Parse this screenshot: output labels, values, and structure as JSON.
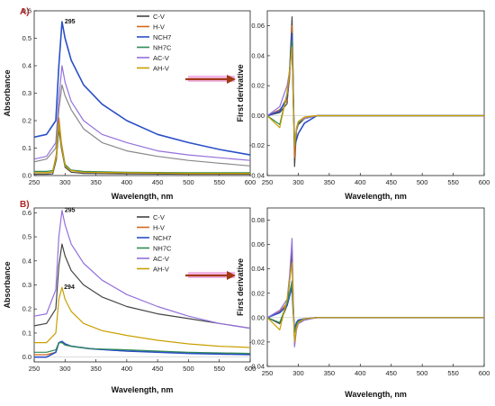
{
  "chart_data": [
    {
      "id": "A-absorbance",
      "type": "line",
      "panel_label": "A)",
      "xlabel": "Wavelength, nm",
      "ylabel": "Absorbance",
      "xlim": [
        250,
        600
      ],
      "ylim": [
        0,
        0.6
      ],
      "xticks": [
        250,
        300,
        350,
        400,
        450,
        500,
        550,
        600
      ],
      "yticks": [
        0.0,
        0.1,
        0.2,
        0.3,
        0.4,
        0.5,
        0.6
      ],
      "ytick_labels": [
        "0.0",
        "0.1",
        "0.2",
        "0.3",
        "0.4",
        "0.5",
        "0.6"
      ],
      "legend_position": "top-right",
      "annotations": [
        {
          "text": "295",
          "x": 295,
          "y": 0.56
        }
      ],
      "series": [
        {
          "name": "C-V",
          "color": "#444444",
          "x": [
            250,
            270,
            280,
            286,
            290,
            294,
            300,
            310,
            330,
            400,
            500,
            600
          ],
          "y": [
            0.005,
            0.005,
            0.006,
            0.06,
            0.17,
            0.1,
            0.03,
            0.012,
            0.008,
            0.006,
            0.005,
            0.005
          ]
        },
        {
          "name": "H-V",
          "color": "#d2691e",
          "x": [
            250,
            270,
            280,
            286,
            290,
            294,
            300,
            310,
            330,
            400,
            500,
            600
          ],
          "y": [
            0.01,
            0.01,
            0.012,
            0.08,
            0.21,
            0.12,
            0.04,
            0.018,
            0.012,
            0.01,
            0.008,
            0.008
          ]
        },
        {
          "name": "NCH7",
          "color": "#2a4fc7",
          "x": [
            250,
            270,
            285,
            290,
            295,
            300,
            310,
            330,
            360,
            400,
            450,
            500,
            550,
            600
          ],
          "y": [
            0.14,
            0.15,
            0.2,
            0.4,
            0.56,
            0.5,
            0.42,
            0.33,
            0.26,
            0.2,
            0.15,
            0.12,
            0.095,
            0.075
          ]
        },
        {
          "name": "NH7C",
          "color": "#2e8b57",
          "x": [
            250,
            270,
            280,
            286,
            290,
            294,
            300,
            310,
            330,
            400,
            500,
            600
          ],
          "y": [
            0.015,
            0.015,
            0.018,
            0.07,
            0.19,
            0.11,
            0.04,
            0.02,
            0.015,
            0.012,
            0.01,
            0.01
          ]
        },
        {
          "name": "AC-V",
          "color": "#9370db",
          "x": [
            250,
            270,
            285,
            290,
            295,
            300,
            310,
            330,
            360,
            400,
            450,
            500,
            550,
            600
          ],
          "y": [
            0.06,
            0.07,
            0.12,
            0.28,
            0.4,
            0.34,
            0.27,
            0.2,
            0.15,
            0.12,
            0.09,
            0.075,
            0.065,
            0.055
          ]
        },
        {
          "name": "AH-V",
          "color": "#c8a000",
          "x": [
            250,
            270,
            280,
            286,
            290,
            294,
            300,
            310,
            330,
            400,
            500,
            600
          ],
          "y": [
            0.01,
            0.01,
            0.013,
            0.07,
            0.19,
            0.11,
            0.035,
            0.018,
            0.012,
            0.01,
            0.008,
            0.008
          ]
        },
        {
          "name": "",
          "color": "#888888",
          "x": [
            250,
            270,
            285,
            290,
            295,
            300,
            310,
            330,
            360,
            400,
            450,
            500,
            550,
            600
          ],
          "y": [
            0.05,
            0.06,
            0.1,
            0.24,
            0.33,
            0.29,
            0.24,
            0.17,
            0.12,
            0.09,
            0.07,
            0.055,
            0.045,
            0.035
          ]
        }
      ]
    },
    {
      "id": "A-derivative",
      "type": "line",
      "xlabel": "Wavelength, nm",
      "ylabel": "First derivative",
      "xlim": [
        250,
        600
      ],
      "ylim": [
        -0.04,
        0.07
      ],
      "xticks": [
        250,
        300,
        350,
        400,
        450,
        500,
        550,
        600
      ],
      "yticks": [
        -0.04,
        -0.02,
        0.0,
        0.02,
        0.04,
        0.06
      ],
      "ytick_labels": [
        "-0.04",
        "-0.02",
        "0.00",
        "0.02",
        "0.04",
        "0.06"
      ],
      "series": [
        {
          "name": "C-V",
          "color": "#444444",
          "x": [
            250,
            270,
            282,
            286,
            290,
            292,
            294,
            297,
            300,
            310,
            330,
            600
          ],
          "y": [
            0.0,
            0.002,
            0.008,
            0.03,
            0.066,
            0.02,
            -0.034,
            -0.01,
            -0.006,
            -0.002,
            0.0,
            0.0
          ]
        },
        {
          "name": "H-V",
          "color": "#d2691e",
          "x": [
            250,
            270,
            282,
            286,
            290,
            292,
            294,
            297,
            300,
            310,
            330,
            600
          ],
          "y": [
            0.0,
            0.004,
            0.01,
            0.025,
            0.06,
            0.015,
            -0.028,
            -0.01,
            -0.004,
            -0.001,
            0.0,
            0.0
          ]
        },
        {
          "name": "NCH7",
          "color": "#2a4fc7",
          "x": [
            250,
            270,
            282,
            286,
            290,
            292,
            294,
            297,
            300,
            310,
            330,
            600
          ],
          "y": [
            0.0,
            0.003,
            0.012,
            0.03,
            0.055,
            0.01,
            -0.02,
            -0.016,
            -0.012,
            -0.005,
            0.0,
            0.0
          ]
        },
        {
          "name": "NH7C",
          "color": "#2e8b57",
          "x": [
            250,
            270,
            282,
            286,
            290,
            292,
            294,
            297,
            300,
            310,
            330,
            600
          ],
          "y": [
            0.0,
            -0.006,
            0.015,
            0.03,
            0.05,
            0.01,
            -0.02,
            -0.01,
            -0.005,
            -0.002,
            0.0,
            0.0
          ]
        },
        {
          "name": "AC-V",
          "color": "#9370db",
          "x": [
            250,
            270,
            282,
            286,
            290,
            292,
            294,
            297,
            300,
            310,
            330,
            600
          ],
          "y": [
            0.0,
            0.006,
            0.02,
            0.03,
            0.045,
            0.01,
            -0.018,
            -0.01,
            -0.004,
            -0.002,
            0.0,
            0.0
          ]
        },
        {
          "name": "AH-V",
          "color": "#c8a000",
          "x": [
            250,
            270,
            282,
            286,
            290,
            292,
            294,
            297,
            300,
            310,
            330,
            600
          ],
          "y": [
            0.0,
            -0.008,
            0.015,
            0.03,
            0.046,
            0.008,
            -0.02,
            -0.008,
            -0.004,
            -0.001,
            0.0,
            0.0
          ]
        }
      ]
    },
    {
      "id": "B-absorbance",
      "type": "line",
      "panel_label": "B)",
      "xlabel": "Wavelength, nm",
      "ylabel": "Absorbance",
      "xlim": [
        250,
        600
      ],
      "ylim": [
        -0.02,
        0.62
      ],
      "xticks": [
        250,
        300,
        350,
        400,
        450,
        500,
        550,
        600
      ],
      "yticks": [
        0.0,
        0.1,
        0.2,
        0.3,
        0.4,
        0.5,
        0.6
      ],
      "ytick_labels": [
        "0.0",
        "0.1",
        "0.2",
        "0.3",
        "0.4",
        "0.5",
        "0.6"
      ],
      "legend_position": "top-right",
      "annotations": [
        {
          "text": "295",
          "x": 295,
          "y": 0.61
        },
        {
          "text": "294",
          "x": 294,
          "y": 0.29
        }
      ],
      "series": [
        {
          "name": "C-V",
          "color": "#444444",
          "x": [
            250,
            270,
            285,
            290,
            295,
            300,
            310,
            330,
            360,
            400,
            450,
            500,
            550,
            600
          ],
          "y": [
            0.13,
            0.14,
            0.2,
            0.38,
            0.47,
            0.42,
            0.36,
            0.3,
            0.25,
            0.21,
            0.18,
            0.16,
            0.14,
            0.12
          ]
        },
        {
          "name": "H-V",
          "color": "#d2691e",
          "x": [
            250,
            270,
            285,
            290,
            295,
            300,
            310,
            340,
            400,
            500,
            600
          ],
          "y": [
            0.01,
            0.01,
            0.02,
            0.06,
            0.06,
            0.05,
            0.045,
            0.035,
            0.025,
            0.018,
            0.012
          ]
        },
        {
          "name": "NCH7",
          "color": "#2a4fc7",
          "x": [
            250,
            270,
            285,
            290,
            295,
            300,
            310,
            340,
            400,
            500,
            600
          ],
          "y": [
            0.0,
            0.0,
            0.02,
            0.06,
            0.065,
            0.055,
            0.045,
            0.035,
            0.025,
            0.015,
            0.01
          ]
        },
        {
          "name": "NH7C",
          "color": "#2e8b57",
          "x": [
            250,
            270,
            285,
            290,
            295,
            300,
            310,
            340,
            400,
            500,
            600
          ],
          "y": [
            0.02,
            0.02,
            0.03,
            0.06,
            0.06,
            0.05,
            0.045,
            0.035,
            0.03,
            0.02,
            0.015
          ]
        },
        {
          "name": "AC-V",
          "color": "#9370db",
          "x": [
            250,
            270,
            285,
            290,
            295,
            300,
            310,
            330,
            360,
            400,
            450,
            500,
            550,
            600
          ],
          "y": [
            0.17,
            0.18,
            0.28,
            0.5,
            0.61,
            0.55,
            0.47,
            0.39,
            0.32,
            0.26,
            0.21,
            0.17,
            0.14,
            0.12
          ]
        },
        {
          "name": "AH-V",
          "color": "#c8a000",
          "x": [
            250,
            270,
            285,
            290,
            295,
            300,
            310,
            330,
            360,
            400,
            450,
            500,
            550,
            600
          ],
          "y": [
            0.06,
            0.06,
            0.1,
            0.24,
            0.29,
            0.24,
            0.19,
            0.14,
            0.11,
            0.09,
            0.07,
            0.055,
            0.045,
            0.04
          ]
        }
      ]
    },
    {
      "id": "B-derivative",
      "type": "line",
      "xlabel": "Wavelength, nm",
      "ylabel": "First derivative",
      "xlim": [
        250,
        600
      ],
      "ylim": [
        -0.04,
        0.09
      ],
      "xticks": [
        250,
        300,
        350,
        400,
        450,
        500,
        550,
        600
      ],
      "yticks": [
        -0.04,
        -0.02,
        0.0,
        0.02,
        0.04,
        0.06,
        0.08
      ],
      "ytick_labels": [
        "-0.04",
        "-0.02",
        "0.00",
        "0.02",
        "0.04",
        "0.06",
        "0.08"
      ],
      "series": [
        {
          "name": "C-V",
          "color": "#444444",
          "x": [
            250,
            270,
            282,
            286,
            290,
            292,
            294,
            297,
            300,
            310,
            330,
            600
          ],
          "y": [
            0.0,
            -0.005,
            0.01,
            0.03,
            0.055,
            0.01,
            -0.022,
            -0.008,
            -0.004,
            -0.001,
            0.0,
            0.0
          ]
        },
        {
          "name": "H-V",
          "color": "#d2691e",
          "x": [
            250,
            270,
            282,
            286,
            290,
            292,
            294,
            297,
            300,
            310,
            330,
            600
          ],
          "y": [
            0.0,
            0.005,
            0.012,
            0.02,
            0.03,
            0.005,
            -0.012,
            -0.005,
            -0.002,
            -0.001,
            0.0,
            0.0
          ]
        },
        {
          "name": "NCH7",
          "color": "#2a4fc7",
          "x": [
            250,
            270,
            282,
            286,
            290,
            292,
            294,
            297,
            300,
            310,
            330,
            600
          ],
          "y": [
            0.0,
            0.004,
            0.01,
            0.018,
            0.025,
            0.004,
            -0.01,
            -0.004,
            -0.002,
            -0.001,
            0.0,
            0.0
          ]
        },
        {
          "name": "NH7C",
          "color": "#2e8b57",
          "x": [
            250,
            270,
            282,
            286,
            290,
            292,
            294,
            297,
            300,
            310,
            330,
            600
          ],
          "y": [
            0.0,
            -0.004,
            0.012,
            0.02,
            0.03,
            0.005,
            -0.012,
            -0.006,
            -0.003,
            -0.001,
            0.0,
            0.0
          ]
        },
        {
          "name": "AC-V",
          "color": "#9370db",
          "x": [
            250,
            270,
            282,
            286,
            290,
            292,
            294,
            297,
            300,
            310,
            330,
            600
          ],
          "y": [
            0.0,
            0.006,
            0.015,
            0.035,
            0.065,
            0.015,
            -0.024,
            -0.01,
            -0.005,
            -0.002,
            0.0,
            0.0
          ]
        },
        {
          "name": "AH-V",
          "color": "#c8a000",
          "x": [
            250,
            270,
            282,
            286,
            290,
            292,
            294,
            297,
            300,
            310,
            330,
            600
          ],
          "y": [
            0.0,
            -0.01,
            0.015,
            0.03,
            0.045,
            0.008,
            -0.02,
            -0.008,
            -0.004,
            -0.001,
            0.0,
            0.0
          ]
        }
      ]
    }
  ],
  "arrow_color": "#a23a16"
}
